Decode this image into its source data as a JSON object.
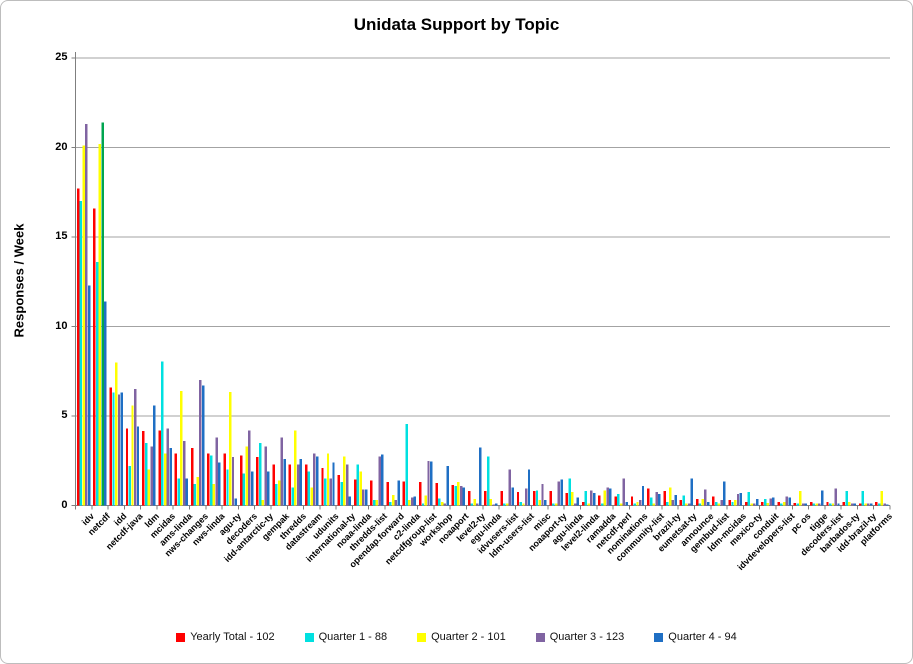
{
  "chart": {
    "title": "Unidata Support by Topic",
    "ylabel": "Responses / Week"
  },
  "legend": {
    "items": [
      {
        "label": "Yearly Total  - 102",
        "color": "#FF0000"
      },
      {
        "label": "Quarter 1 - 88",
        "color": "#00E0E0"
      },
      {
        "label": "Quarter 2 - 101",
        "color": "#FFFF00"
      },
      {
        "label": "Quarter 3 - 123",
        "color": "#8064A2"
      },
      {
        "label": "Quarter 4 - 94",
        "color": "#1F6FC4"
      }
    ]
  },
  "chart_data": {
    "type": "bar",
    "title": "Unidata Support by Topic",
    "xlabel": "",
    "ylabel": "Responses / Week",
    "ylim": [
      0,
      25
    ],
    "yticks": [
      0,
      5,
      10,
      15,
      20,
      25
    ],
    "grid": true,
    "legend_position": "bottom",
    "categories": [
      "idv",
      "netcdf",
      "idd",
      "netcdf-java",
      "ldm",
      "mcidas",
      "ams-linda",
      "nws-changes",
      "nws-linda",
      "agu-ty",
      "decoders",
      "idd-antarctic-ty",
      "gempak",
      "thredds",
      "datastream",
      "udunits",
      "international-ty",
      "noaa-linda",
      "thredds-list",
      "opendap.forward",
      "c2-linda",
      "netcdfgroup-list",
      "workshop",
      "noaaport",
      "level2-ty",
      "egu-linda",
      "idvusers-list",
      "ldm-users-list",
      "misc",
      "noaaport-ty",
      "agu-linda",
      "level2-linda",
      "ramadda",
      "netcdf-perl",
      "nominations",
      "community-list",
      "brazil-ty",
      "eumetsat-ty",
      "announce",
      "gembud-list",
      "ldm-mcidas",
      "mexico-ty",
      "conduit",
      "idvdevelopers-list",
      "pc os",
      "tigge",
      "decoders-list",
      "barbados-ty",
      "idd-brazil-ty",
      "platforms"
    ],
    "series": [
      {
        "name": "Yearly Total  - 102",
        "color": "#FF0000",
        "values": [
          17.7,
          16.6,
          6.6,
          4.3,
          4.15,
          4.2,
          2.9,
          3.2,
          2.9,
          2.9,
          2.8,
          2.7,
          2.3,
          2.3,
          2.3,
          2.1,
          1.7,
          1.45,
          1.4,
          1.3,
          1.35,
          1.3,
          1.25,
          1.15,
          0.8,
          0.8,
          0.8,
          0.75,
          0.8,
          0.8,
          0.7,
          0.2,
          0.55,
          0.5,
          0.5,
          0.95,
          0.8,
          0.3,
          0.35,
          0.5,
          0.3,
          0.2,
          0.2,
          0.2,
          0.15,
          0.2,
          0.2,
          0.2,
          0.1,
          0.2
        ]
      },
      {
        "name": "Quarter 1 - 88",
        "color": "#00E0E0",
        "values": [
          17.0,
          13.6,
          6.3,
          2.2,
          3.5,
          8.05,
          1.5,
          1.2,
          2.8,
          2.0,
          1.8,
          3.5,
          1.2,
          1.0,
          1.9,
          1.5,
          1.3,
          2.3,
          0.3,
          0.2,
          4.55,
          0.1,
          0.4,
          1.1,
          0.1,
          2.75,
          0.1,
          0.2,
          0.85,
          0.1,
          1.5,
          0.8,
          0.1,
          0.65,
          0.1,
          0.45,
          0.2,
          0.55,
          0.1,
          0.2,
          0.2,
          0.75,
          0.35,
          0.1,
          0.1,
          0.1,
          0.1,
          0.8,
          0.8,
          0.1
        ]
      },
      {
        "name": "Quarter 2 - 101",
        "color": "#FFFF00",
        "values": [
          20.1,
          20.2,
          8.0,
          5.6,
          2.0,
          2.9,
          6.4,
          1.6,
          1.2,
          6.35,
          3.3,
          0.3,
          1.4,
          4.2,
          1.0,
          2.9,
          2.75,
          1.9,
          0.3,
          0.6,
          0.3,
          0.55,
          0.2,
          1.3,
          0.35,
          0.35,
          0.1,
          0.1,
          0.3,
          0.1,
          0.75,
          0.1,
          0.85,
          0.1,
          0.2,
          0.1,
          1.0,
          0.1,
          0.35,
          0.1,
          0.3,
          0.1,
          0.15,
          0.2,
          0.8,
          0.1,
          0.1,
          0.2,
          0.1,
          0.8
        ]
      },
      {
        "name": "Quarter 3 - 123",
        "color": "#8064A2",
        "values": [
          21.3,
          21.4,
          6.2,
          6.5,
          3.3,
          4.3,
          3.6,
          7.0,
          3.8,
          2.7,
          4.2,
          3.3,
          3.8,
          2.3,
          2.9,
          1.5,
          2.3,
          0.9,
          2.75,
          0.3,
          0.45,
          2.5,
          0.1,
          1.1,
          0.1,
          0.05,
          2.0,
          0.95,
          1.2,
          1.35,
          0.1,
          0.85,
          1.0,
          1.5,
          0.3,
          0.75,
          0.3,
          0.1,
          0.9,
          0.3,
          0.65,
          0.1,
          0.4,
          0.5,
          0.1,
          0.1,
          0.95,
          0.1,
          0.1,
          0.1
        ]
      },
      {
        "name": "Quarter 4 - 94",
        "color": "#1F6FC4",
        "values": [
          12.3,
          11.4,
          6.3,
          4.4,
          5.6,
          3.2,
          1.5,
          6.7,
          2.4,
          0.4,
          1.9,
          1.9,
          2.6,
          2.6,
          2.75,
          2.4,
          0.5,
          0.9,
          2.85,
          1.4,
          0.5,
          2.45,
          2.2,
          1.0,
          3.25,
          0.1,
          1.0,
          2.0,
          0.3,
          1.45,
          0.45,
          0.7,
          0.95,
          0.2,
          1.1,
          0.65,
          0.6,
          1.5,
          0.2,
          1.35,
          0.7,
          0.35,
          0.45,
          0.45,
          0.1,
          0.85,
          0.1,
          0.1,
          0.1,
          0.05
        ]
      }
    ],
    "bar_color_overrides": [
      {
        "category": "netcdf",
        "series": "Quarter 3 - 123",
        "color": "#00A550"
      }
    ]
  }
}
